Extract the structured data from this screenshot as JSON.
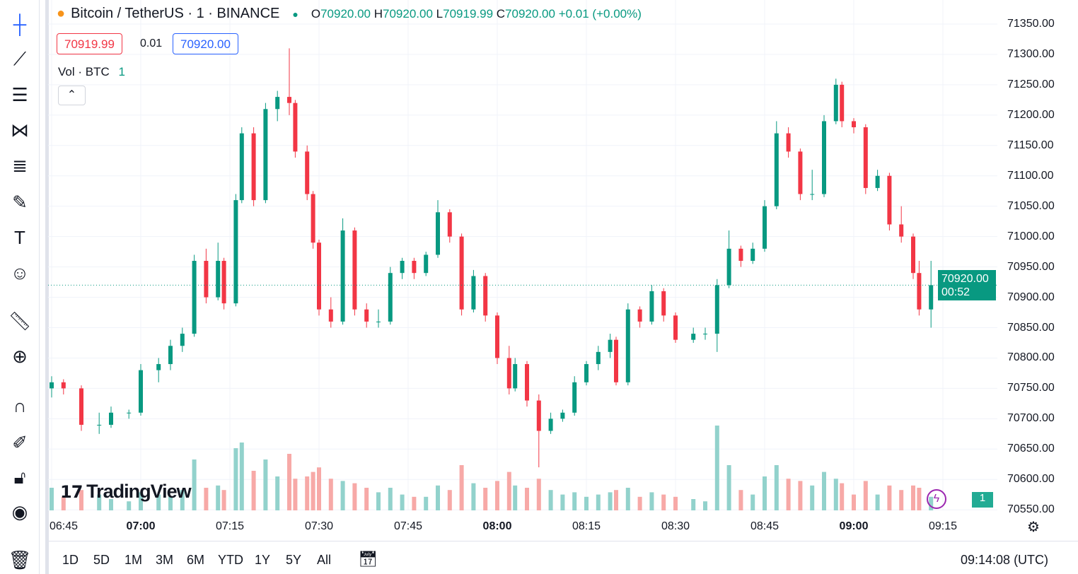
{
  "header": {
    "symbol": "Bitcoin / TetherUS · 1 · BINANCE",
    "open_label": "O",
    "open": "70920.00",
    "high_label": "H",
    "high": "70920.00",
    "low_label": "L",
    "low": "70919.99",
    "close_label": "C",
    "close": "70920.00",
    "change": "+0.01 (+0.00%)",
    "bid": "70919.99",
    "spread": "0.01",
    "ask": "70920.00",
    "volume_label": "Vol · BTC",
    "volume_value": "1"
  },
  "price_tag": {
    "price": "70920.00",
    "countdown": "00:52"
  },
  "volume_tag": "1",
  "branding": "TradingView",
  "bottom": {
    "ranges": [
      "1D",
      "5D",
      "1M",
      "3M",
      "6M",
      "YTD",
      "1Y",
      "5Y",
      "All"
    ],
    "clock": "09:14:08 (UTC)"
  },
  "colors": {
    "up": "#089981",
    "down": "#f23645",
    "up_vol": "#92d2cc",
    "down_vol": "#f7a9a7"
  },
  "chart_data": {
    "type": "candlestick",
    "symbol": "BTCUSDT",
    "ylim": [
      70550,
      71370
    ],
    "y_ticks": [
      "71350.00",
      "71300.00",
      "71250.00",
      "71200.00",
      "71150.00",
      "71100.00",
      "71050.00",
      "71000.00",
      "70950.00",
      "70900.00",
      "70850.00",
      "70800.00",
      "70750.00",
      "70700.00",
      "70650.00",
      "70600.00",
      "70550.00"
    ],
    "x_ticks": [
      "06:45",
      "07:00",
      "07:15",
      "07:30",
      "07:45",
      "08:00",
      "08:15",
      "08:30",
      "08:45",
      "09:00",
      "09:15"
    ],
    "last_price": 70920,
    "candles": [
      [
        "06:45",
        70750,
        70770,
        70735,
        70760,
        20
      ],
      [
        "06:47",
        70760,
        70765,
        70740,
        70750,
        12
      ],
      [
        "06:50",
        70750,
        70755,
        70680,
        70690,
        18
      ],
      [
        "06:53",
        70690,
        70710,
        70675,
        70690,
        14
      ],
      [
        "06:55",
        70690,
        70720,
        70685,
        70710,
        10
      ],
      [
        "06:58",
        70710,
        70715,
        70700,
        70710,
        8
      ],
      [
        "07:00",
        70710,
        70790,
        70705,
        70780,
        16
      ],
      [
        "07:03",
        70780,
        70800,
        70760,
        70790,
        14
      ],
      [
        "07:05",
        70790,
        70830,
        70780,
        70820,
        12
      ],
      [
        "07:07",
        70820,
        70850,
        70810,
        70840,
        18
      ],
      [
        "07:09",
        70840,
        70970,
        70835,
        70960,
        45
      ],
      [
        "07:11",
        70960,
        70980,
        70890,
        70900,
        20
      ],
      [
        "07:13",
        70900,
        70990,
        70895,
        70960,
        22
      ],
      [
        "07:14",
        70960,
        70965,
        70880,
        70890,
        18
      ],
      [
        "07:16",
        70890,
        71070,
        70885,
        71060,
        55
      ],
      [
        "07:17",
        71060,
        71180,
        71055,
        71170,
        60
      ],
      [
        "07:19",
        71170,
        71180,
        71050,
        71060,
        35
      ],
      [
        "07:21",
        71060,
        71220,
        71055,
        71210,
        45
      ],
      [
        "07:23",
        71210,
        71240,
        71190,
        71230,
        30
      ],
      [
        "07:25",
        71230,
        71310,
        71200,
        71220,
        50
      ],
      [
        "07:26",
        71220,
        71225,
        71130,
        71140,
        28
      ],
      [
        "07:28",
        71140,
        71150,
        71060,
        71070,
        30
      ],
      [
        "07:29",
        71070,
        71075,
        70980,
        70990,
        34
      ],
      [
        "07:30",
        70990,
        70995,
        70870,
        70880,
        38
      ],
      [
        "07:32",
        70880,
        70900,
        70850,
        70860,
        28
      ],
      [
        "07:34",
        70860,
        71030,
        70855,
        71010,
        26
      ],
      [
        "07:36",
        71010,
        71015,
        70870,
        70880,
        24
      ],
      [
        "07:38",
        70880,
        70890,
        70850,
        70860,
        20
      ],
      [
        "07:40",
        70860,
        70880,
        70850,
        70860,
        16
      ],
      [
        "07:42",
        70860,
        70950,
        70855,
        70940,
        20
      ],
      [
        "07:44",
        70940,
        70965,
        70930,
        70960,
        14
      ],
      [
        "07:46",
        70960,
        70965,
        70930,
        70940,
        12
      ],
      [
        "07:48",
        70940,
        70975,
        70935,
        70970,
        12
      ],
      [
        "07:50",
        70970,
        71060,
        70965,
        71040,
        22
      ],
      [
        "07:52",
        71040,
        71045,
        70990,
        71000,
        18
      ],
      [
        "07:54",
        71000,
        71005,
        70870,
        70880,
        40
      ],
      [
        "07:56",
        70880,
        70945,
        70875,
        70935,
        24
      ],
      [
        "07:58",
        70935,
        70940,
        70860,
        70870,
        20
      ],
      [
        "08:00",
        70870,
        70875,
        70790,
        70800,
        26
      ],
      [
        "08:02",
        70800,
        70820,
        70740,
        70750,
        34
      ],
      [
        "08:03",
        70750,
        70800,
        70745,
        70790,
        22
      ],
      [
        "08:05",
        70790,
        70795,
        70720,
        70730,
        20
      ],
      [
        "08:07",
        70730,
        70740,
        70620,
        70680,
        28
      ],
      [
        "08:09",
        70680,
        70710,
        70675,
        70700,
        18
      ],
      [
        "08:11",
        70700,
        70715,
        70695,
        70710,
        14
      ],
      [
        "08:13",
        70710,
        70770,
        70705,
        70760,
        16
      ],
      [
        "08:15",
        70760,
        70795,
        70755,
        70790,
        12
      ],
      [
        "08:17",
        70790,
        70820,
        70780,
        70810,
        14
      ],
      [
        "08:19",
        70810,
        70840,
        70800,
        70830,
        16
      ],
      [
        "08:20",
        70830,
        70835,
        70755,
        70760,
        18
      ],
      [
        "08:22",
        70760,
        70890,
        70755,
        70880,
        20
      ],
      [
        "08:24",
        70880,
        70885,
        70850,
        70860,
        12
      ],
      [
        "08:26",
        70860,
        70920,
        70855,
        70910,
        16
      ],
      [
        "08:28",
        70910,
        70915,
        70860,
        70870,
        14
      ],
      [
        "08:30",
        70870,
        70875,
        70825,
        70830,
        12
      ],
      [
        "08:33",
        70830,
        70850,
        70825,
        70840,
        10
      ],
      [
        "08:35",
        70840,
        70850,
        70830,
        70840,
        8
      ],
      [
        "08:37",
        70840,
        70930,
        70810,
        70920,
        75
      ],
      [
        "08:39",
        70920,
        71010,
        70915,
        70980,
        40
      ],
      [
        "08:41",
        70980,
        70985,
        70950,
        70960,
        18
      ],
      [
        "08:43",
        70960,
        70990,
        70955,
        70980,
        14
      ],
      [
        "08:45",
        70980,
        71060,
        70975,
        71050,
        30
      ],
      [
        "08:47",
        71050,
        71190,
        71045,
        71170,
        40
      ],
      [
        "08:49",
        71170,
        71180,
        71130,
        71140,
        28
      ],
      [
        "08:51",
        71140,
        71145,
        71060,
        71070,
        26
      ],
      [
        "08:53",
        71070,
        71110,
        71060,
        71070,
        22
      ],
      [
        "08:55",
        71070,
        71200,
        71065,
        71190,
        34
      ],
      [
        "08:57",
        71190,
        71260,
        71185,
        71250,
        28
      ],
      [
        "08:58",
        71250,
        71255,
        71180,
        71190,
        24
      ],
      [
        "09:00",
        71190,
        71195,
        71170,
        71180,
        14
      ],
      [
        "09:02",
        71180,
        71185,
        71070,
        71080,
        26
      ],
      [
        "09:04",
        71080,
        71110,
        71075,
        71100,
        14
      ],
      [
        "09:06",
        71100,
        71105,
        71010,
        71020,
        22
      ],
      [
        "09:08",
        71020,
        71050,
        70990,
        71000,
        18
      ],
      [
        "09:10",
        71000,
        71005,
        70930,
        70940,
        22
      ],
      [
        "09:11",
        70940,
        70960,
        70870,
        70880,
        20
      ],
      [
        "09:13",
        70880,
        70960,
        70850,
        70920,
        12
      ]
    ]
  }
}
